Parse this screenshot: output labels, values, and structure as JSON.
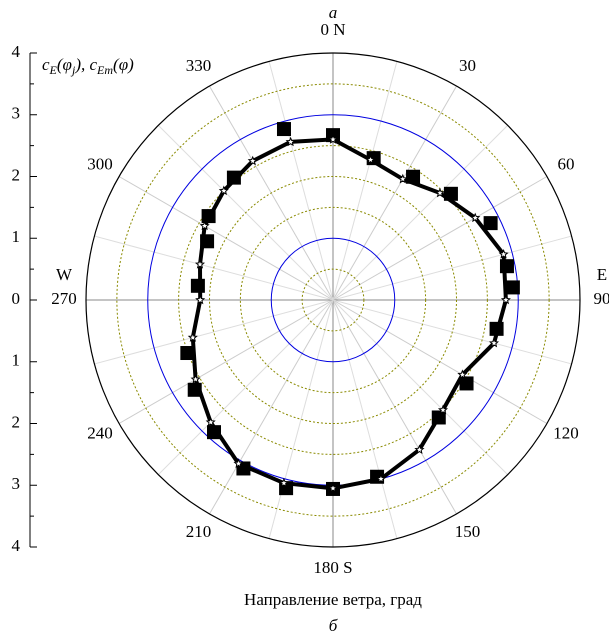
{
  "chart_data": {
    "type": "polar",
    "title": "а",
    "subtitle": "б",
    "x_label": "Направление ветра, град",
    "r_label": [
      {
        "text": "c"
      },
      {
        "text": "E",
        "sub": true
      },
      {
        "text": "(φ"
      },
      {
        "text": "j",
        "sub": true
      },
      {
        "text": "), c"
      },
      {
        "text": "Em",
        "sub": true
      },
      {
        "text": "(φ)"
      }
    ],
    "rlim": [
      0,
      4
    ],
    "rticks": [
      0,
      1,
      2,
      3,
      4
    ],
    "rings": [
      {
        "value": 0.5,
        "color": "#8a8a00",
        "style": "dotted"
      },
      {
        "value": 1,
        "color": "#0000e0",
        "style": "solid"
      },
      {
        "value": 1.5,
        "color": "#8a8a00",
        "style": "dotted"
      },
      {
        "value": 2,
        "color": "#8a8a00",
        "style": "dotted"
      },
      {
        "value": 2.5,
        "color": "#8a8a00",
        "style": "dotted"
      },
      {
        "value": 3,
        "color": "#0000e0",
        "style": "solid"
      },
      {
        "value": 3.5,
        "color": "#8a8a00",
        "style": "dotted"
      }
    ],
    "angle_ticks": [
      {
        "value": 0,
        "label": "0 N"
      },
      30,
      60,
      90,
      120,
      150,
      {
        "value": 180,
        "label": "180 S"
      },
      210,
      240,
      270,
      300,
      330
    ],
    "compass_labels": [
      {
        "value": 90,
        "label": "E"
      },
      {
        "value": 270,
        "label": "W"
      }
    ],
    "series": [
      {
        "marker": "square",
        "color": "#000000",
        "theta": [
          0,
          16,
          33,
          48,
          64,
          79,
          86,
          100,
          122,
          138,
          166,
          180,
          194,
          208,
          222,
          237,
          250,
          276,
          295,
          304,
          321,
          344
        ],
        "values": [
          2.67,
          2.39,
          2.38,
          2.57,
          2.84,
          2.87,
          2.92,
          2.69,
          2.55,
          2.56,
          2.95,
          3.06,
          3.14,
          3.09,
          2.88,
          2.67,
          2.51,
          2.2,
          2.25,
          2.43,
          2.55,
          2.88
        ]
      },
      {
        "marker": "star",
        "color": "#000000",
        "theta": [
          0,
          15,
          30,
          45,
          60,
          75,
          90,
          105,
          120,
          135,
          150,
          165,
          180,
          195,
          210,
          225,
          240,
          255,
          270,
          285,
          300,
          315,
          330,
          345
        ],
        "values": [
          2.6,
          2.35,
          2.26,
          2.45,
          2.66,
          2.86,
          2.8,
          2.7,
          2.42,
          2.52,
          2.8,
          3.0,
          3.05,
          3.07,
          3.06,
          2.8,
          2.57,
          2.35,
          2.15,
          2.23,
          2.4,
          2.5,
          2.6,
          2.65
        ]
      }
    ]
  }
}
